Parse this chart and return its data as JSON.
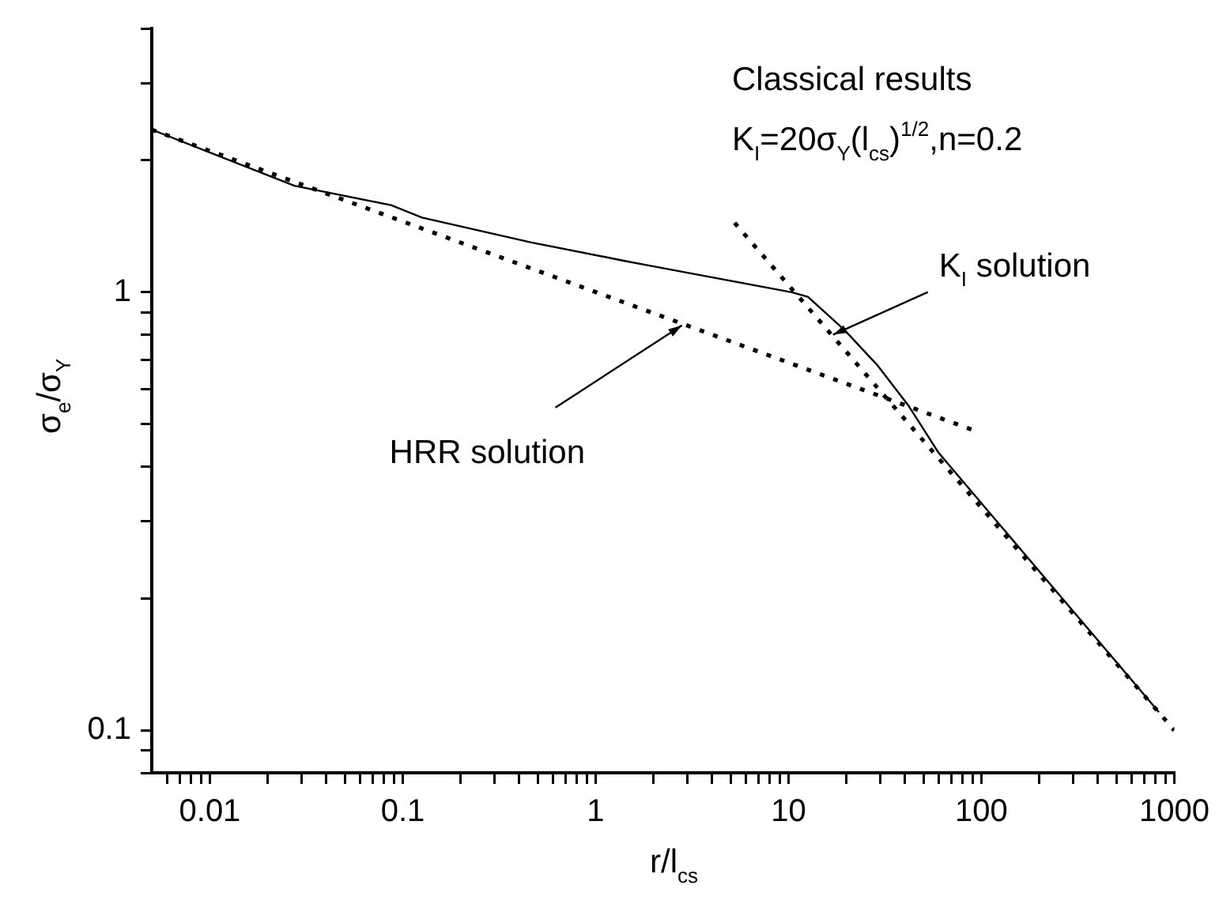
{
  "chart_data": {
    "type": "line",
    "xlabel": "r/l$_{cs}$",
    "ylabel": "σ$_{e}$/σ$_{Y}$",
    "log": "xy",
    "grid": false,
    "legend": false,
    "marker": "none",
    "xlim": [
      0.005,
      1000
    ],
    "ylim": [
      0.08,
      4
    ],
    "xticks": [
      {
        "value": 0.006,
        "label": null
      },
      {
        "value": 0.007,
        "label": null
      },
      {
        "value": 0.008,
        "label": null
      },
      {
        "value": 0.009,
        "label": null
      },
      0.01,
      {
        "value": 0.02,
        "label": null
      },
      {
        "value": 0.03,
        "label": null
      },
      {
        "value": 0.04,
        "label": null
      },
      {
        "value": 0.05,
        "label": null
      },
      {
        "value": 0.06,
        "label": null
      },
      {
        "value": 0.07,
        "label": null
      },
      {
        "value": 0.08,
        "label": null
      },
      {
        "value": 0.09,
        "label": null
      },
      0.1,
      {
        "value": 0.2,
        "label": null
      },
      {
        "value": 0.3,
        "label": null
      },
      {
        "value": 0.4,
        "label": null
      },
      {
        "value": 0.5,
        "label": null
      },
      {
        "value": 0.6,
        "label": null
      },
      {
        "value": 0.7,
        "label": null
      },
      {
        "value": 0.8,
        "label": null
      },
      {
        "value": 0.9,
        "label": null
      },
      1,
      {
        "value": 2,
        "label": null
      },
      {
        "value": 3,
        "label": null
      },
      {
        "value": 4,
        "label": null
      },
      {
        "value": 5,
        "label": null
      },
      {
        "value": 6,
        "label": null
      },
      {
        "value": 7,
        "label": null
      },
      {
        "value": 8,
        "label": null
      },
      {
        "value": 9,
        "label": null
      },
      10,
      {
        "value": 20,
        "label": null
      },
      {
        "value": 30,
        "label": null
      },
      {
        "value": 40,
        "label": null
      },
      {
        "value": 50,
        "label": null
      },
      {
        "value": 60,
        "label": null
      },
      {
        "value": 70,
        "label": null
      },
      {
        "value": 80,
        "label": null
      },
      {
        "value": 90,
        "label": null
      },
      100,
      {
        "value": 200,
        "label": null
      },
      {
        "value": 300,
        "label": null
      },
      {
        "value": 400,
        "label": null
      },
      {
        "value": 500,
        "label": null
      },
      {
        "value": 600,
        "label": null
      },
      {
        "value": 700,
        "label": null
      },
      {
        "value": 800,
        "label": null
      },
      {
        "value": 900,
        "label": null
      },
      1000
    ],
    "yticks": [
      {
        "value": 0.08,
        "label": null
      },
      {
        "value": 0.09,
        "label": null
      },
      0.1,
      {
        "value": 0.2,
        "label": null
      },
      {
        "value": 0.3,
        "label": null
      },
      {
        "value": 0.4,
        "label": null
      },
      {
        "value": 0.5,
        "label": null
      },
      {
        "value": 0.6,
        "label": null
      },
      {
        "value": 0.7,
        "label": null
      },
      {
        "value": 0.8,
        "label": null
      },
      {
        "value": 0.9,
        "label": null
      },
      1,
      {
        "value": 2,
        "label": null
      },
      {
        "value": 3,
        "label": null
      },
      {
        "value": 4,
        "label": null
      }
    ],
    "series": [
      {
        "color": "#000000",
        "line_style": "solid",
        "x": [
          0.005,
          0.0275,
          0.087,
          0.126,
          0.46,
          1.4,
          1.9,
          10.4,
          12.6,
          19.5,
          29,
          42,
          60,
          832
        ],
        "values": [
          2.35,
          1.75,
          1.58,
          1.48,
          1.3,
          1.18,
          1.15,
          1.0,
          0.976,
          0.82,
          0.68,
          0.55,
          0.43,
          0.11
        ]
      },
      {
        "color": "#000000",
        "line_style": "dotted",
        "x": [
          0.005,
          90
        ],
        "values": [
          2.35,
          0.485
        ]
      },
      {
        "color": "#000000",
        "line_style": "dotted",
        "x": [
          5.25,
          1000
        ],
        "values": [
          1.44,
          0.1
        ]
      }
    ],
    "annotations": [
      "Classical results",
      "K$_{I}$=20σ$_{Y}$(l$_{cs}$)$^{1/2}$,n=0.2",
      {
        "text": "K$_{I}$ solution",
        "x": 17,
        "y": 0.8
      },
      {
        "text": "HRR solution",
        "x": 2.8,
        "y": 0.84
      }
    ]
  }
}
